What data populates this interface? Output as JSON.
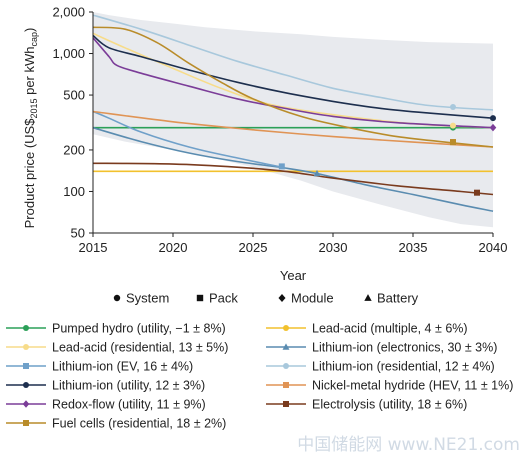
{
  "chart_data": {
    "type": "line",
    "xlabel": "Year",
    "ylabel": "Product price (US$",
    "ylabel_sub": "2015",
    "ylabel_mid": " per kWh",
    "ylabel_sub2": "cap",
    "ylabel_end": ")",
    "xlim": [
      2015,
      2040
    ],
    "ylim": [
      50,
      2000
    ],
    "yscale": "log",
    "xticks": [
      "2015",
      "2020",
      "2025",
      "2030",
      "2035",
      "2040"
    ],
    "yticks": [
      "50",
      "100",
      "200",
      "500",
      "1,000",
      "2,000"
    ],
    "ytick_values": [
      50,
      100,
      200,
      500,
      1000,
      2000
    ],
    "uncertainty_band": {
      "color": "#e8eaee",
      "upper": [
        [
          2015,
          2000
        ],
        [
          2016,
          1900
        ],
        [
          2018,
          1750
        ],
        [
          2020,
          1650
        ],
        [
          2022,
          1550
        ],
        [
          2025,
          1450
        ],
        [
          2028,
          1380
        ],
        [
          2030,
          1320
        ],
        [
          2033,
          1260
        ],
        [
          2036,
          1210
        ],
        [
          2040,
          1180
        ]
      ],
      "lower": [
        [
          2015,
          260
        ],
        [
          2017,
          230
        ],
        [
          2020,
          200
        ],
        [
          2023,
          170
        ],
        [
          2025,
          150
        ],
        [
          2028,
          120
        ],
        [
          2030,
          100
        ],
        [
          2033,
          80
        ],
        [
          2036,
          65
        ],
        [
          2038,
          58
        ],
        [
          2040,
          55
        ]
      ]
    },
    "marker_key": [
      {
        "symbol": "circle",
        "label": "System"
      },
      {
        "symbol": "square",
        "label": "Pack"
      },
      {
        "symbol": "diamond",
        "label": "Module"
      },
      {
        "symbol": "triangle",
        "label": "Battery"
      }
    ],
    "series": [
      {
        "name": "Pumped hydro (utility, −1 ± 8%)",
        "color": "#2ca058",
        "marker": "circle",
        "points": [
          [
            2015,
            290
          ],
          [
            2020,
            290
          ],
          [
            2025,
            290
          ],
          [
            2030,
            290
          ],
          [
            2035,
            290
          ],
          [
            2040,
            290
          ]
        ],
        "marker_at": [
          2037.5,
          290
        ]
      },
      {
        "name": "Lead-acid (multiple, 4 ± 6%)",
        "color": "#f2c12e",
        "marker": "circle",
        "points": [
          [
            2015,
            140
          ],
          [
            2020,
            140
          ],
          [
            2025,
            140
          ],
          [
            2030,
            140
          ],
          [
            2035,
            140
          ],
          [
            2040,
            140
          ]
        ],
        "marker_at": null
      },
      {
        "name": "Lead-acid (residential, 13 ± 5%)",
        "color": "#f7dc8a",
        "marker": "circle",
        "points": [
          [
            2015,
            1400
          ],
          [
            2017,
            1100
          ],
          [
            2020,
            780
          ],
          [
            2023,
            560
          ],
          [
            2026,
            430
          ],
          [
            2030,
            360
          ],
          [
            2035,
            310
          ],
          [
            2040,
            290
          ]
        ],
        "marker_at": [
          2037.5,
          300
        ]
      },
      {
        "name": "Lithium-ion (electronics, 30 ± 3%)",
        "color": "#5a8cb0",
        "marker": "triangle",
        "points": [
          [
            2015,
            290
          ],
          [
            2018,
            230
          ],
          [
            2021,
            190
          ],
          [
            2024,
            165
          ],
          [
            2027,
            148
          ],
          [
            2029,
            135
          ],
          [
            2032,
            112
          ],
          [
            2035,
            95
          ],
          [
            2038,
            80
          ],
          [
            2040,
            72
          ]
        ],
        "marker_at": [
          2029,
          135
        ]
      },
      {
        "name": "Lithium-ion (EV, 16 ± 4%)",
        "color": "#6fa0c9",
        "marker": "square",
        "points": [
          [
            2015,
            380
          ],
          [
            2016,
            340
          ],
          [
            2018,
            270
          ],
          [
            2021,
            210
          ],
          [
            2024,
            175
          ],
          [
            2026.8,
            150
          ]
        ],
        "marker_at": [
          2026.8,
          152
        ]
      },
      {
        "name": "Lithium-ion (residential, 12 ± 4%)",
        "color": "#a8c8dc",
        "marker": "circle",
        "points": [
          [
            2015,
            1900
          ],
          [
            2018,
            1500
          ],
          [
            2021,
            1150
          ],
          [
            2024,
            880
          ],
          [
            2027,
            700
          ],
          [
            2030,
            560
          ],
          [
            2033,
            480
          ],
          [
            2036,
            420
          ],
          [
            2040,
            390
          ]
        ],
        "marker_at": [
          2037.5,
          410
        ]
      },
      {
        "name": "Lithium-ion (utility, 12 ± 3%)",
        "color": "#1d2f4e",
        "marker": "circle",
        "points": [
          [
            2015,
            1350
          ],
          [
            2016,
            1100
          ],
          [
            2018,
            950
          ],
          [
            2021,
            760
          ],
          [
            2024,
            620
          ],
          [
            2027,
            520
          ],
          [
            2030,
            450
          ],
          [
            2033,
            400
          ],
          [
            2036,
            370
          ],
          [
            2040,
            340
          ]
        ],
        "marker_at": [
          2040,
          340
        ]
      },
      {
        "name": "Nickel-metal hydride (HEV, 11 ± 1%)",
        "color": "#e09455",
        "marker": "square",
        "points": [
          [
            2015,
            380
          ],
          [
            2020,
            320
          ],
          [
            2025,
            280
          ],
          [
            2030,
            250
          ],
          [
            2035,
            228
          ],
          [
            2040,
            210
          ]
        ],
        "marker_at": [
          2037.5,
          228
        ]
      },
      {
        "name": "Redox-flow (utility, 11 ± 9%)",
        "color": "#7b3d98",
        "marker": "diamond",
        "points": [
          [
            2015,
            1300
          ],
          [
            2016,
            950
          ],
          [
            2016.5,
            820
          ],
          [
            2018,
            720
          ],
          [
            2021,
            580
          ],
          [
            2024,
            470
          ],
          [
            2027,
            400
          ],
          [
            2030,
            350
          ],
          [
            2034,
            315
          ],
          [
            2040,
            290
          ]
        ],
        "marker_at": [
          2040,
          290
        ]
      },
      {
        "name": "Electrolysis (utility, 18 ± 6%)",
        "color": "#7a3b1e",
        "marker": "square",
        "points": [
          [
            2015,
            160
          ],
          [
            2020,
            158
          ],
          [
            2024,
            150
          ],
          [
            2027,
            140
          ],
          [
            2030,
            125
          ],
          [
            2034,
            110
          ],
          [
            2038,
            100
          ],
          [
            2040,
            95
          ]
        ],
        "marker_at": [
          2039,
          98
        ]
      },
      {
        "name": "Fuel cells (residential, 18 ± 2%)",
        "color": "#b98c2a",
        "marker": "square",
        "points": [
          [
            2015,
            1550
          ],
          [
            2017,
            1500
          ],
          [
            2019,
            1200
          ],
          [
            2021,
            850
          ],
          [
            2023,
            620
          ],
          [
            2025,
            470
          ],
          [
            2028,
            350
          ],
          [
            2031,
            290
          ],
          [
            2034,
            250
          ],
          [
            2037.5,
            225
          ],
          [
            2040,
            210
          ]
        ],
        "marker_at": [
          2037.5,
          228
        ]
      }
    ]
  },
  "watermark": "中国储能网 www.NE21.com"
}
